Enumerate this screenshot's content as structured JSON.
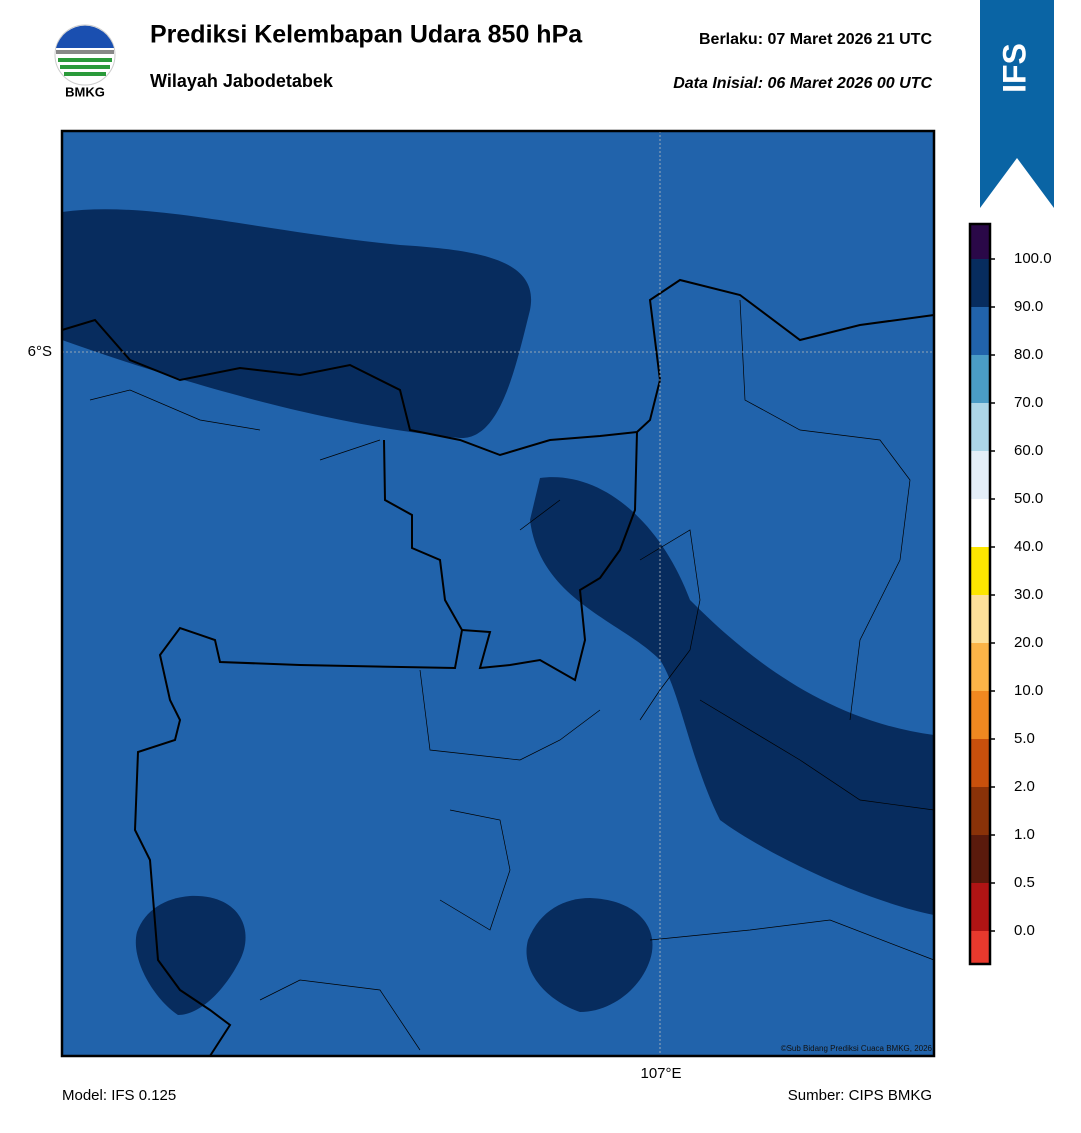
{
  "header": {
    "title": "Prediksi Kelembapan Udara 850 hPa",
    "subtitle": "Wilayah Jabodetabek",
    "valid": "Berlaku:  07 Maret 2026 21 UTC",
    "init": "Data Inisial:  06 Maret 2026 00 UTC",
    "logo": "BMKG",
    "badge": "IFS"
  },
  "map": {
    "lat_label": "6°S",
    "lon_label": "107°E",
    "credit": "©Sub Bidang Prediksi Cuaca BMKG, 2026"
  },
  "colorbar": {
    "labels": [
      "0.0",
      "0.5",
      "1.0",
      "2.0",
      "5.0",
      "10.0",
      "20.0",
      "30.0",
      "40.0",
      "50.0",
      "60.0",
      "70.0",
      "80.0",
      "90.0",
      "100.0"
    ],
    "colors": [
      "#e8392d",
      "#b01414",
      "#5a1a0c",
      "#8a3208",
      "#c8500c",
      "#f08820",
      "#fbb448",
      "#fde09a",
      "#fde600",
      "#ffffff",
      "#e4eef8",
      "#acd6e8",
      "#4a9cc6",
      "#2163ab",
      "#072c5e",
      "#2a0848"
    ]
  },
  "footer": {
    "model": "Model: IFS 0.125",
    "source": "Sumber: CIPS BMKG"
  }
}
